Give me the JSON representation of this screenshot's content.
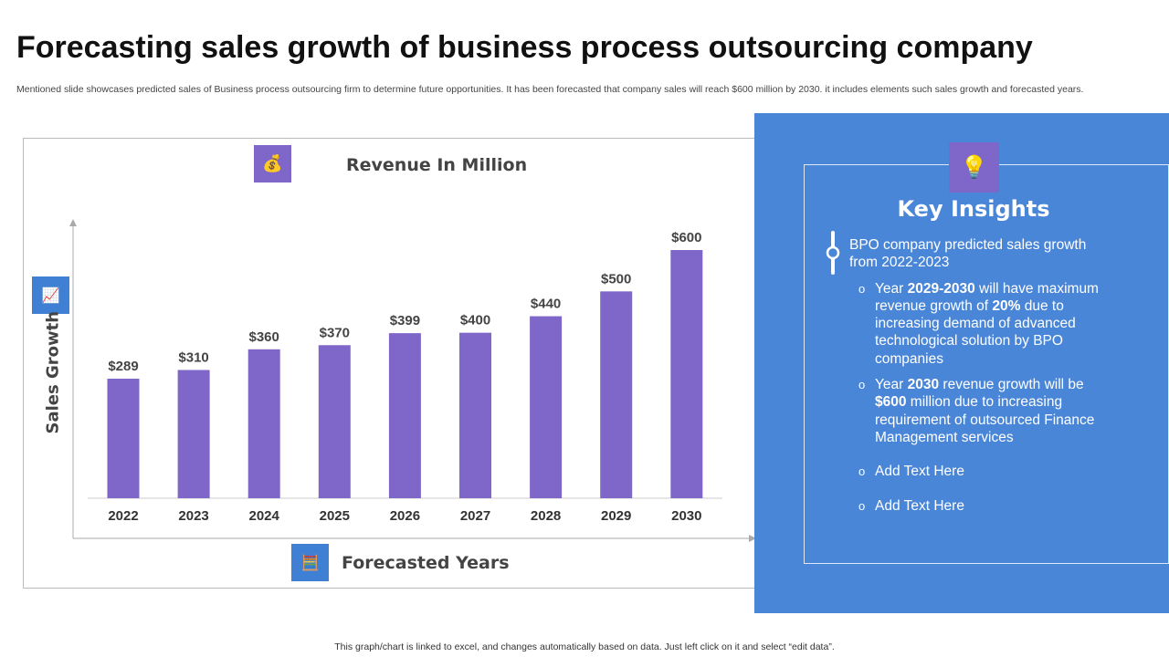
{
  "title": "Forecasting sales growth of business process outsourcing company",
  "subtitle": "Mentioned slide showcases predicted sales of Business process outsourcing firm to determine future opportunities. It has been forecasted that company sales will reach $600 million by 2030. it includes elements such sales growth and forecasted years.",
  "chart_data": {
    "type": "bar",
    "title": "Revenue In Million",
    "xlabel": "Forecasted Years",
    "ylabel": "Sales Growth",
    "categories": [
      "2022",
      "2023",
      "2024",
      "2025",
      "2026",
      "2027",
      "2028",
      "2029",
      "2030"
    ],
    "values": [
      289,
      310,
      360,
      370,
      399,
      400,
      440,
      500,
      600
    ],
    "data_labels": [
      "$289",
      "$310",
      "$360",
      "$370",
      "$399",
      "$400",
      "$440",
      "$500",
      "$600"
    ],
    "ylim": [
      0,
      600
    ],
    "grid": false,
    "bar_color": "#7f67c9"
  },
  "insights": {
    "title": "Key Insights",
    "heading": "BPO company predicted sales growth from 2022-2023",
    "items": [
      [
        {
          "t": "Year "
        },
        {
          "t": "2029-2030",
          "b": true
        },
        {
          "t": " will have maximum revenue growth of "
        },
        {
          "t": "20%",
          "b": true
        },
        {
          "t": " due to increasing demand of advanced technological solution by BPO companies"
        }
      ],
      [
        {
          "t": "Year "
        },
        {
          "t": "2030",
          "b": true
        },
        {
          "t": " revenue growth will be "
        },
        {
          "t": "$600",
          "b": true
        },
        {
          "t": " million due to increasing requirement of outsourced Finance Management services"
        }
      ],
      [
        {
          "t": "Add Text Here"
        }
      ],
      [
        {
          "t": "Add Text Here"
        }
      ]
    ],
    "bullet": "o"
  },
  "footer": "This graph/chart is linked to excel, and changes automatically based on data. Just left click on it and select “edit data”.",
  "colors": {
    "panel": "#4a86d8",
    "accent": "#7f67c9",
    "icon_blue": "#3f7fd4"
  }
}
